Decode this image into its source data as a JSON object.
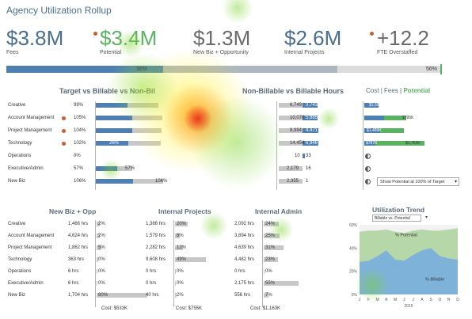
{
  "title": "Agency Utilization Rollup",
  "kpis": [
    {
      "value": "$3.8M",
      "label": "Fees",
      "color": "#4a6e8e"
    },
    {
      "value": "$3.4M",
      "label": "Potential",
      "color": "#5bb262"
    },
    {
      "value": "$1.3M",
      "label": "New Biz + Opportunity",
      "color": "#6a6a6a"
    },
    {
      "value": "$2.6M",
      "label": "Internal Projects",
      "color": "#4a6e8e"
    },
    {
      "value": "+12.2",
      "label": "FTE Overstaffed",
      "color": "#6a6a6a"
    }
  ],
  "overall": {
    "billable_pct": 0.36,
    "potential_pct": 0.56,
    "left_label": "36%",
    "right_label": "56%"
  },
  "sections": {
    "target_vs_billable": "Target vs Billable vs Non-Bil",
    "nonbillable_vs_billable": "Non-Billable vs Billable Hours",
    "new_biz": "New Biz + Opp",
    "internal_projects": "Internal Projects",
    "internal_admin": "Internal Admin",
    "utilization_trend": "Utilization Trend"
  },
  "tabs": {
    "cost": "Cost",
    "sep1": "|",
    "fees": "Fees",
    "sep2": "|",
    "potential": "Potential"
  },
  "departments": [
    {
      "name": "Creative",
      "target": "99%",
      "nb": "6,749",
      "b": "3,743",
      "pot": "$1,553K",
      "flag": false
    },
    {
      "name": "Account Management",
      "target": "105%",
      "nb": "10,070",
      "b": "5,985",
      "pot": "$795K",
      "flag": true
    },
    {
      "name": "Project Management",
      "target": "104%",
      "nb": "8,994",
      "b": "4,471",
      "pot": "$1,489K",
      "flag": true
    },
    {
      "name": "Technology",
      "target": "102%",
      "nb": "14,454",
      "b": "6,946",
      "pot": "$1,762K",
      "flag": true
    },
    {
      "name": "Operations",
      "target": "0%",
      "nb": "10",
      "b": "33",
      "pot": "",
      "flag": false
    },
    {
      "name": "Executive/Admin",
      "target": "57%",
      "nb": "2,179",
      "b": "16",
      "pot": "",
      "flag": false
    },
    {
      "name": "New Biz",
      "target": "106%",
      "nb": "2,355",
      "b": "1",
      "pot": "",
      "flag": false
    }
  ],
  "billable_labels": {
    "tech": "26%",
    "exec": "57%",
    "newbiz": "106%"
  },
  "potential_small": {
    "creative": "$1,553K",
    "account": "$795K",
    "project": "$1,489K",
    "tech_left": "$787K",
    "tech_right": "$1,762K"
  },
  "show_select": "Show Potential at 100% of Target",
  "newbiz_rows": [
    {
      "hrs": "1,466 hrs",
      "pct": "2%"
    },
    {
      "hrs": "4,624 hrs",
      "pct": "2%"
    },
    {
      "hrs": "1,862 hrs",
      "pct": "5%"
    },
    {
      "hrs": "363 hrs",
      "pct": "0%"
    },
    {
      "hrs": "6 hrs",
      "pct": "0%"
    },
    {
      "hrs": "6 hrs",
      "pct": "0%"
    },
    {
      "hrs": "1,704 hrs",
      "pct": "80%"
    }
  ],
  "internal_rows": [
    {
      "hrs": "1,386 hrs",
      "pct": "20%"
    },
    {
      "hrs": "1,579 hrs",
      "pct": "8%"
    },
    {
      "hrs": "2,282 hrs",
      "pct": "12%"
    },
    {
      "hrs": "9,608 hrs",
      "pct": "49%"
    },
    {
      "hrs": "0 hrs",
      "pct": "0%"
    },
    {
      "hrs": "0 hrs",
      "pct": "0%"
    },
    {
      "hrs": "40 hrs",
      "pct": "2%"
    }
  ],
  "admin_rows": [
    {
      "hrs": "2,092 hrs",
      "pct": "24%"
    },
    {
      "hrs": "3,894 hrs",
      "pct": "25%"
    },
    {
      "hrs": "4,639 hrs",
      "pct": "31%"
    },
    {
      "hrs": "4,482 hrs",
      "pct": "23%"
    },
    {
      "hrs": "0 hrs",
      "pct": "0%"
    },
    {
      "hrs": "2,175 hrs",
      "pct": "55%"
    },
    {
      "hrs": "556 hrs",
      "pct": "7%"
    }
  ],
  "costs": {
    "newbiz": "Cost: $533K",
    "internal": "Cost: $755K",
    "admin": "Cost: $1,163K"
  },
  "trend": {
    "select": "Billable vs. Potential",
    "yticks": [
      "60%",
      "40%",
      "20%",
      "0%"
    ],
    "months": [
      "J",
      "F",
      "M",
      "A",
      "M",
      "J",
      "J",
      "A",
      "S",
      "O",
      "N",
      "D"
    ],
    "year": "2015",
    "potential_label": "% Potential",
    "billable_label": "% Billable",
    "potential": [
      0.54,
      0.55,
      0.55,
      0.56,
      0.54,
      0.53,
      0.55,
      0.56,
      0.55,
      0.55,
      0.56,
      0.57
    ],
    "billable": [
      0.28,
      0.29,
      0.33,
      0.38,
      0.3,
      0.29,
      0.34,
      0.38,
      0.4,
      0.33,
      0.31,
      0.3
    ],
    "potential_color": "#b6d7a8",
    "billable_color": "#7fb2d8"
  },
  "colors": {
    "blue": "#4e7fb0",
    "green": "#5bb262",
    "gray": "#c7c7c7",
    "orange": "#c0622e"
  }
}
